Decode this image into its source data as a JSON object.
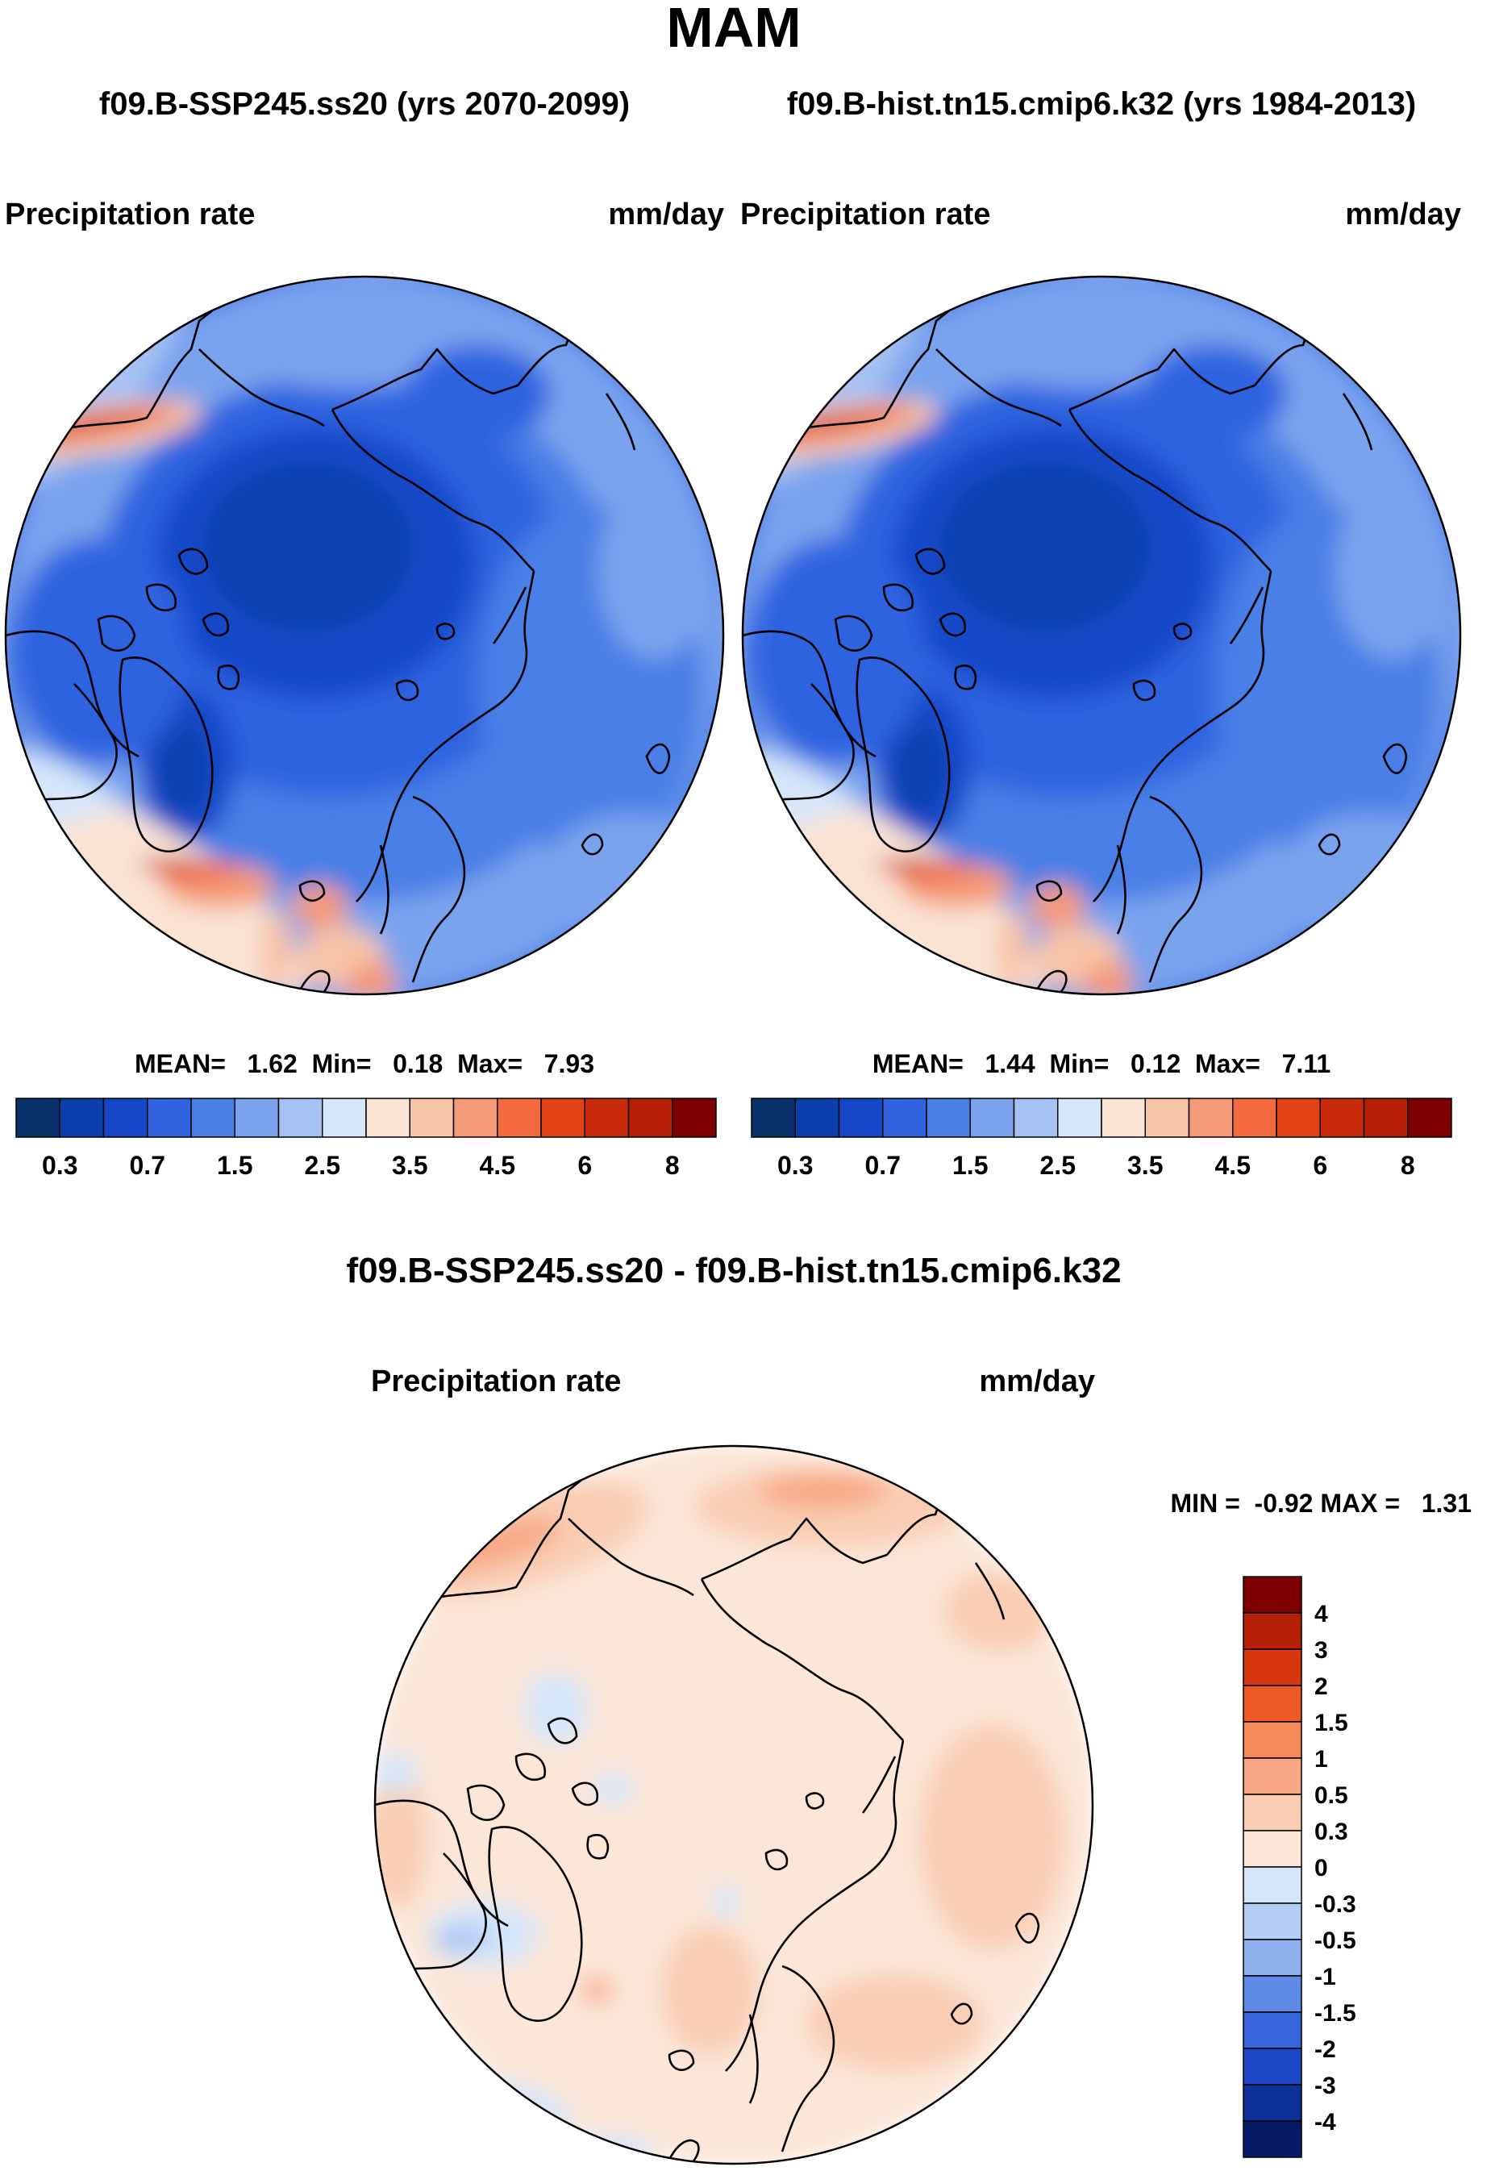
{
  "figure": {
    "season": "MAM",
    "subtitle_left": "f09.B-SSP245.ss20 (yrs 2070-2099)",
    "subtitle_right": "f09.B-hist.tn15.cmip6.k32 (yrs 1984-2013)",
    "diff_title": "f09.B-SSP245.ss20 - f09.B-hist.tn15.cmip6.k32"
  },
  "panels": {
    "left": {
      "variable": "Precipitation rate",
      "units": "mm/day",
      "stats": "MEAN=   1.62  Min=   0.18  Max=   7.93",
      "colorbar_labels": [
        "0.3",
        "0.7",
        "1.5",
        "2.5",
        "3.5",
        "4.5",
        "6",
        "8"
      ]
    },
    "right": {
      "variable": "Precipitation rate",
      "units": "mm/day",
      "stats": "MEAN=   1.44  Min=   0.12  Max=   7.11",
      "colorbar_labels": [
        "0.3",
        "0.7",
        "1.5",
        "2.5",
        "3.5",
        "4.5",
        "6",
        "8"
      ]
    },
    "diff": {
      "variable": "Precipitation rate",
      "units": "mm/day",
      "stats": "MIN =  -0.92 MAX =   1.31",
      "colorbar_labels": [
        "4",
        "3",
        "2",
        "1.5",
        "1",
        "0.5",
        "0.3",
        "0",
        "-0.3",
        "-0.5",
        "-1",
        "-1.5",
        "-2",
        "-3",
        "-4"
      ]
    }
  },
  "colors": {
    "abs_scale": [
      "#08306b",
      "#0b3fae",
      "#1548c9",
      "#2f63e0",
      "#4a7fe6",
      "#7aa3ee",
      "#a6c2f4",
      "#d6e6fa",
      "#fbe3d4",
      "#f8c4a8",
      "#f59a78",
      "#f26a3e",
      "#e34216",
      "#c92a0c",
      "#b41f06",
      "#7f0000"
    ],
    "diff_scale": [
      "#7f0000",
      "#b41f06",
      "#d8360e",
      "#ee5a26",
      "#f58a5a",
      "#f8a884",
      "#f9cdb3",
      "#fbe6d8",
      "#d6e6fa",
      "#b3cdf5",
      "#8fb1ee",
      "#5f8ae6",
      "#3865dc",
      "#1c47c6",
      "#0b3098",
      "#061a66"
    ],
    "coast": "#000000"
  }
}
